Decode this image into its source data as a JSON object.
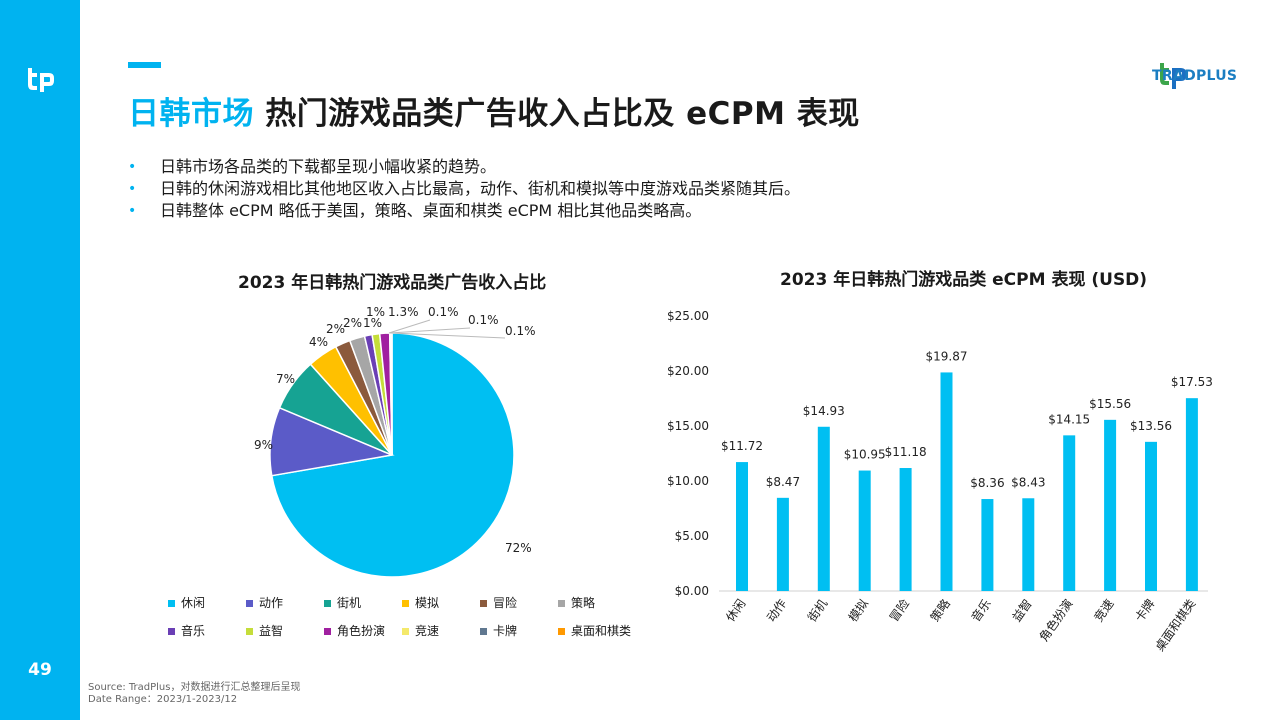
{
  "page": {
    "number": "49",
    "title_highlight": "日韩市场",
    "title_rest": "热门游戏品类广告收入占比及 eCPM 表现",
    "brand": "TRADPLUS",
    "bullets": [
      "日韩市场各品类的下载都呈现小幅收紧的趋势。",
      "日韩的休闲游戏相比其他地区收入占比最高，动作、街机和模拟等中度游戏品类紧随其后。",
      "日韩整体 eCPM 略低于美国，策略、桌面和棋类 eCPM 相比其他品类略高。"
    ],
    "source_line1": "Source: TradPlus，对数据进行汇总整理后呈现",
    "source_line2": "Date Range：2023/1-2023/12",
    "accent_color": "#00b3f0"
  },
  "chart_data": [
    {
      "type": "pie",
      "title": "2023 年日韩热门游戏品类广告收入占比",
      "legend_position": "bottom",
      "slices": [
        {
          "label": "休闲",
          "value": 72,
          "value_label": "72%",
          "color": "#00bff2"
        },
        {
          "label": "动作",
          "value": 9,
          "value_label": "9%",
          "color": "#5b5bc8"
        },
        {
          "label": "街机",
          "value": 7,
          "value_label": "7%",
          "color": "#16a393"
        },
        {
          "label": "模拟",
          "value": 4,
          "value_label": "4%",
          "color": "#ffc000"
        },
        {
          "label": "冒险",
          "value": 2,
          "value_label": "2%",
          "color": "#8b5a3c"
        },
        {
          "label": "策略",
          "value": 2,
          "value_label": "2%",
          "color": "#a6a6a6"
        },
        {
          "label": "音乐",
          "value": 1,
          "value_label": "1%",
          "color": "#6a3fb5"
        },
        {
          "label": "益智",
          "value": 1,
          "value_label": "1%",
          "color": "#c5dd3a"
        },
        {
          "label": "角色扮演",
          "value": 1.3,
          "value_label": "1.3%",
          "color": "#a020a0"
        },
        {
          "label": "竞速",
          "value": 0.1,
          "value_label": "0.1%",
          "color": "#f4e96b"
        },
        {
          "label": "卡牌",
          "value": 0.1,
          "value_label": "0.1%",
          "color": "#607890"
        },
        {
          "label": "桌面和棋类",
          "value": 0.1,
          "value_label": "0.1%",
          "color": "#ff9900"
        }
      ]
    },
    {
      "type": "bar",
      "title": "2023 年日韩热门游戏品类 eCPM 表现 (USD)",
      "categories": [
        "休闲",
        "动作",
        "街机",
        "模拟",
        "冒险",
        "策略",
        "音乐",
        "益智",
        "角色扮演",
        "竞速",
        "卡牌",
        "桌面和棋类"
      ],
      "values": [
        11.72,
        8.47,
        14.93,
        10.95,
        11.18,
        19.87,
        8.36,
        8.43,
        14.15,
        15.56,
        13.56,
        17.53
      ],
      "value_labels": [
        "$11.72",
        "$8.47",
        "$14.93",
        "$10.95",
        "$11.18",
        "$19.87",
        "$8.36",
        "$8.43",
        "$14.15",
        "$15.56",
        "$13.56",
        "$17.53"
      ],
      "ylim": [
        0,
        25
      ],
      "yticks": [
        "$0.00",
        "$5.00",
        "$10.00",
        "$15.00",
        "$20.00",
        "$25.00"
      ],
      "bar_color": "#00bff2",
      "grid": false
    }
  ]
}
